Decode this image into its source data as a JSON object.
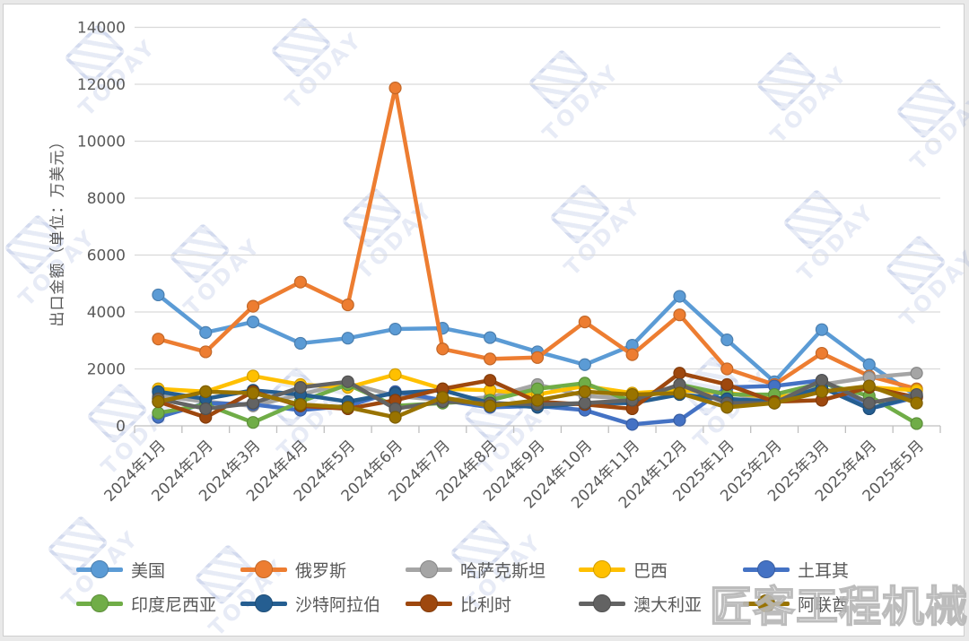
{
  "watermarks": {
    "brand_text": "匠客工程机械",
    "logo_text": "TODAY"
  },
  "chart_data": {
    "type": "line",
    "title": "",
    "xlabel": "",
    "ylabel": "出口金额（单位：万美元）",
    "ylim": [
      0,
      14000
    ],
    "ytick_step": 2000,
    "yticks": [
      0,
      2000,
      4000,
      6000,
      8000,
      10000,
      12000,
      14000
    ],
    "grid": true,
    "legend_position": "bottom",
    "categories": [
      "2024年1月",
      "2024年2月",
      "2024年3月",
      "2024年4月",
      "2024年5月",
      "2024年6月",
      "2024年7月",
      "2024年8月",
      "2024年9月",
      "2024年10月",
      "2024年11月",
      "2024年12月",
      "2025年1月",
      "2025年2月",
      "2025年3月",
      "2025年4月",
      "2025年5月"
    ],
    "series": [
      {
        "name": "美国",
        "slug": "usa",
        "color": "#5B9BD5",
        "values": [
          4600,
          3280,
          3650,
          2900,
          3080,
          3400,
          3430,
          3100,
          2600,
          2150,
          2830,
          4550,
          3020,
          1550,
          3380,
          2150,
          1050
        ]
      },
      {
        "name": "俄罗斯",
        "slug": "russia",
        "color": "#ED7D31",
        "values": [
          3050,
          2600,
          4200,
          5050,
          4250,
          11870,
          2700,
          2350,
          2400,
          3650,
          2500,
          3900,
          2000,
          1450,
          2550,
          1750,
          1300
        ]
      },
      {
        "name": "哈萨克斯坦",
        "slug": "kazakhstan",
        "color": "#A5A5A5",
        "values": [
          1050,
          850,
          700,
          1100,
          1500,
          1050,
          900,
          1000,
          1450,
          1050,
          950,
          1300,
          1150,
          900,
          1450,
          1700,
          1850
        ]
      },
      {
        "name": "巴西",
        "slug": "brazil",
        "color": "#FFC000",
        "values": [
          1300,
          1200,
          1750,
          1450,
          1350,
          1800,
          1300,
          1250,
          1100,
          1400,
          1150,
          1250,
          1150,
          1000,
          1200,
          1350,
          1250
        ]
      },
      {
        "name": "土耳其",
        "slug": "turkey",
        "color": "#4472C4",
        "values": [
          300,
          800,
          750,
          550,
          700,
          1200,
          900,
          650,
          700,
          550,
          50,
          200,
          1350,
          1400,
          1600,
          600,
          1000
        ]
      },
      {
        "name": "印度尼西亚",
        "slug": "indonesia",
        "color": "#70AD47",
        "values": [
          450,
          750,
          120,
          850,
          1450,
          700,
          800,
          900,
          1300,
          1500,
          850,
          1450,
          1100,
          1100,
          1500,
          1050,
          80
        ]
      },
      {
        "name": "沙特阿拉伯",
        "slug": "saudi-arabia",
        "color": "#255E91",
        "values": [
          1200,
          950,
          1250,
          1100,
          850,
          1150,
          1250,
          800,
          650,
          800,
          800,
          1100,
          950,
          850,
          1350,
          600,
          1050
        ]
      },
      {
        "name": "比利时",
        "slug": "belgium",
        "color": "#9E480E",
        "values": [
          850,
          300,
          1200,
          700,
          600,
          900,
          1300,
          1600,
          850,
          750,
          600,
          1850,
          1450,
          850,
          900,
          1350,
          1000
        ]
      },
      {
        "name": "澳大利亚",
        "slug": "australia",
        "color": "#636363",
        "values": [
          950,
          600,
          800,
          1350,
          1550,
          600,
          850,
          800,
          750,
          800,
          900,
          1450,
          800,
          800,
          1600,
          800,
          1100
        ]
      },
      {
        "name": "阿联酋",
        "slug": "uae",
        "color": "#997300",
        "values": [
          850,
          1200,
          1150,
          750,
          650,
          300,
          1000,
          700,
          900,
          1200,
          1100,
          1150,
          650,
          800,
          1200,
          1400,
          800
        ]
      }
    ]
  },
  "colors": {
    "axis_line": "#BFBFBF",
    "gridline": "#D9D9D9",
    "tick_label": "#595959"
  }
}
